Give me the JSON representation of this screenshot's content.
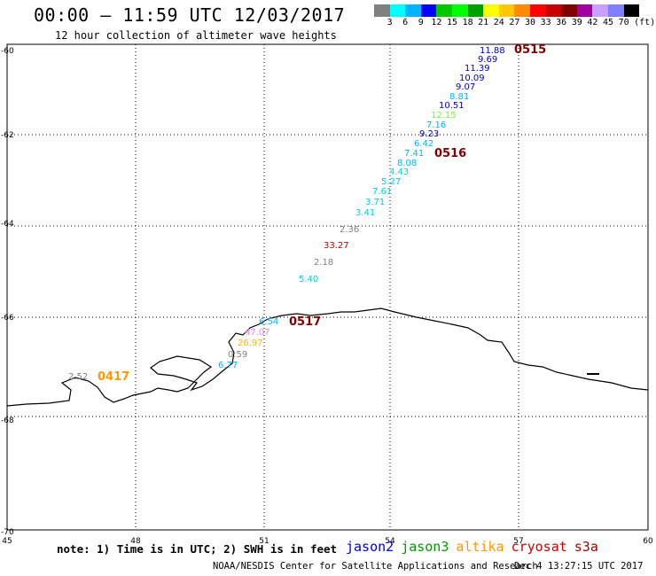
{
  "header": {
    "title": "00:00 – 11:59 UTC 12/03/2017",
    "subtitle": "12 hour collection of altimeter wave heights"
  },
  "legend": {
    "swatch_colors": [
      "#808080",
      "#00ffff",
      "#00b4ff",
      "#0000ff",
      "#00c800",
      "#00ff00",
      "#00a000",
      "#ffff00",
      "#ffc800",
      "#ff8c00",
      "#ff0000",
      "#c80000",
      "#800000",
      "#a000a0",
      "#c8a0ff",
      "#8080ff",
      "#000000"
    ],
    "labels": [
      "3",
      "6",
      "9",
      "12",
      "15",
      "18",
      "21",
      "24",
      "27",
      "30",
      "33",
      "36",
      "39",
      "42",
      "45",
      "70",
      "(ft)"
    ]
  },
  "map": {
    "lat_labels": [
      "-60",
      "-62",
      "-64",
      "-66",
      "-68",
      "-70"
    ],
    "lon_labels": [
      "45",
      "48",
      "51",
      "54",
      "57",
      "60"
    ],
    "passes": [
      {
        "label": "0515",
        "color": "#800000"
      },
      {
        "label": "0516",
        "color": "#800000"
      },
      {
        "label": "0517",
        "color": "#800000"
      },
      {
        "label": "0417",
        "color": "#ff9900"
      }
    ],
    "readings": [
      {
        "value": "11.88",
        "color": "#0000cc"
      },
      {
        "value": "9.69",
        "color": "#0000cc"
      },
      {
        "value": "11.39",
        "color": "#0000cc"
      },
      {
        "value": "10.09",
        "color": "#0000cc"
      },
      {
        "value": "9.07",
        "color": "#0000cc"
      },
      {
        "value": "8.81",
        "color": "#00b4ff"
      },
      {
        "value": "10.51",
        "color": "#0000cc"
      },
      {
        "value": "12.15",
        "color": "#66ff33"
      },
      {
        "value": "7.16",
        "color": "#00b4ff"
      },
      {
        "value": "9.23",
        "color": "#0000cc"
      },
      {
        "value": "6.42",
        "color": "#00b4ff"
      },
      {
        "value": "7.41",
        "color": "#00b4ff"
      },
      {
        "value": "8.08",
        "color": "#00b4ff"
      },
      {
        "value": "4.43",
        "color": "#00d0e0"
      },
      {
        "value": "5.27",
        "color": "#00d0e0"
      },
      {
        "value": "7.61",
        "color": "#00d0e0"
      },
      {
        "value": "3.71",
        "color": "#00d0e0"
      },
      {
        "value": "3.41",
        "color": "#00d0e0"
      },
      {
        "value": "2.36",
        "color": "#808080"
      },
      {
        "value": "33.27",
        "color": "#c80000"
      },
      {
        "value": "2.18",
        "color": "#808080"
      },
      {
        "value": "5.40",
        "color": "#00d0e0"
      },
      {
        "value": "6.54",
        "color": "#00b4ff"
      },
      {
        "value": "47.07",
        "color": "#ee82ee"
      },
      {
        "value": "26.97",
        "color": "#ffb400"
      },
      {
        "value": "0.59",
        "color": "#808080"
      },
      {
        "value": "6.77",
        "color": "#00b4ff"
      },
      {
        "value": "2.52",
        "color": "#808080"
      }
    ]
  },
  "footer": {
    "note": "note: 1) Time is in UTC; 2) SWH is in feet",
    "satellites": [
      {
        "name": "jason2",
        "color": "#0000cc"
      },
      {
        "name": "jason3",
        "color": "#009900"
      },
      {
        "name": "altika",
        "color": "#ff9900"
      },
      {
        "name": "cryosat",
        "color": "#cc0000"
      },
      {
        "name": "s3a",
        "color": "#990000"
      }
    ],
    "credit": "NOAA/NESDIS Center for Satellite Applications and Research",
    "date": "Dec  4 13:27:15 UTC 2017"
  }
}
